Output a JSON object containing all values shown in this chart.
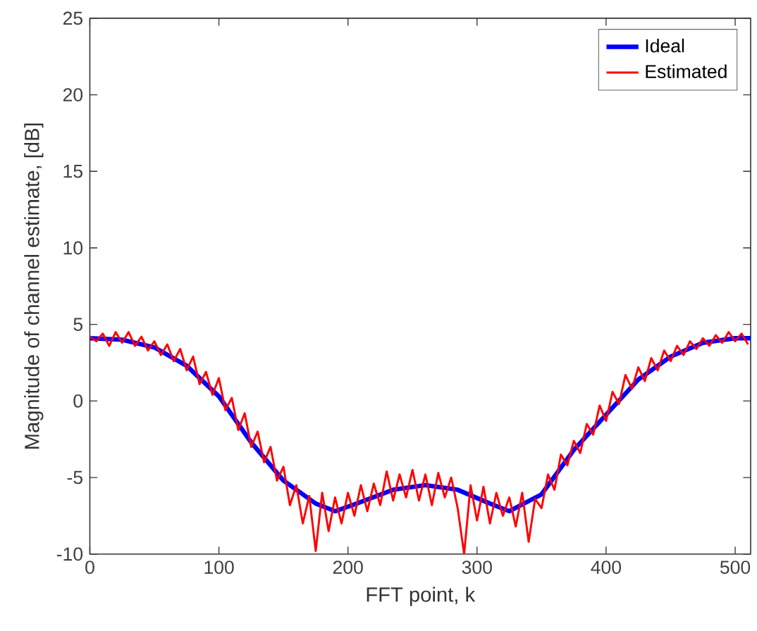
{
  "chart_data": {
    "type": "line",
    "xlabel": "FFT point, k",
    "ylabel": "Magnitude of channel estimate, [dB]",
    "xlim": [
      0,
      512
    ],
    "ylim": [
      -10,
      25
    ],
    "xticks": [
      0,
      100,
      200,
      300,
      400,
      500
    ],
    "yticks": [
      -10,
      -5,
      0,
      5,
      10,
      15,
      20,
      25
    ],
    "grid": false,
    "legend": "top right",
    "series": [
      {
        "name": "Ideal",
        "color": "#0000ff",
        "x": [
          0,
          25,
          50,
          75,
          100,
          125,
          150,
          175,
          190,
          210,
          235,
          260,
          285,
          310,
          325,
          350,
          375,
          400,
          425,
          450,
          475,
          500,
          512
        ],
        "values": [
          4.1,
          4.0,
          3.5,
          2.3,
          0.3,
          -2.7,
          -5.2,
          -6.7,
          -7.2,
          -6.6,
          -5.8,
          -5.5,
          -5.8,
          -6.7,
          -7.2,
          -6.1,
          -3.2,
          -0.9,
          1.4,
          2.9,
          3.8,
          4.1,
          4.1
        ]
      },
      {
        "name": "Estimated",
        "color": "#ff0000",
        "x": [
          0,
          5,
          10,
          15,
          20,
          25,
          30,
          35,
          40,
          45,
          50,
          55,
          60,
          65,
          70,
          75,
          80,
          85,
          90,
          95,
          100,
          105,
          110,
          115,
          120,
          125,
          130,
          135,
          140,
          145,
          150,
          155,
          160,
          165,
          170,
          175,
          180,
          185,
          190,
          195,
          200,
          205,
          210,
          215,
          220,
          225,
          230,
          235,
          240,
          245,
          250,
          255,
          260,
          265,
          270,
          275,
          280,
          285,
          290,
          295,
          300,
          305,
          310,
          315,
          320,
          325,
          330,
          335,
          340,
          345,
          350,
          355,
          360,
          365,
          370,
          375,
          380,
          385,
          390,
          395,
          400,
          405,
          410,
          415,
          420,
          425,
          430,
          435,
          440,
          445,
          450,
          455,
          460,
          465,
          470,
          475,
          480,
          485,
          490,
          495,
          500,
          505,
          510
        ],
        "values": [
          4.2,
          3.9,
          4.4,
          3.6,
          4.5,
          3.8,
          4.5,
          3.6,
          4.2,
          3.3,
          3.9,
          3.0,
          3.7,
          2.6,
          3.4,
          2.0,
          2.9,
          1.1,
          1.9,
          0.4,
          1.5,
          -0.6,
          0.2,
          -1.9,
          -0.8,
          -3.0,
          -2.0,
          -4.0,
          -3.0,
          -5.2,
          -4.3,
          -6.8,
          -5.5,
          -8.0,
          -6.2,
          -9.8,
          -6.0,
          -8.5,
          -6.3,
          -8.0,
          -6.0,
          -7.5,
          -5.5,
          -7.2,
          -5.4,
          -6.8,
          -4.6,
          -6.5,
          -4.8,
          -6.3,
          -4.5,
          -6.5,
          -4.8,
          -6.8,
          -4.7,
          -6.3,
          -5.0,
          -7.0,
          -10.0,
          -5.5,
          -7.8,
          -5.6,
          -8.0,
          -6.0,
          -7.5,
          -6.3,
          -8.2,
          -6.0,
          -9.2,
          -6.4,
          -7.0,
          -4.8,
          -5.8,
          -3.5,
          -4.2,
          -2.6,
          -3.4,
          -1.5,
          -2.2,
          -0.3,
          -1.3,
          0.6,
          -0.2,
          1.7,
          0.8,
          2.2,
          1.3,
          2.8,
          2.0,
          3.3,
          2.6,
          3.6,
          3.0,
          3.9,
          3.4,
          4.1,
          3.6,
          4.3,
          3.8,
          4.5,
          3.9,
          4.4,
          3.7
        ]
      }
    ]
  }
}
